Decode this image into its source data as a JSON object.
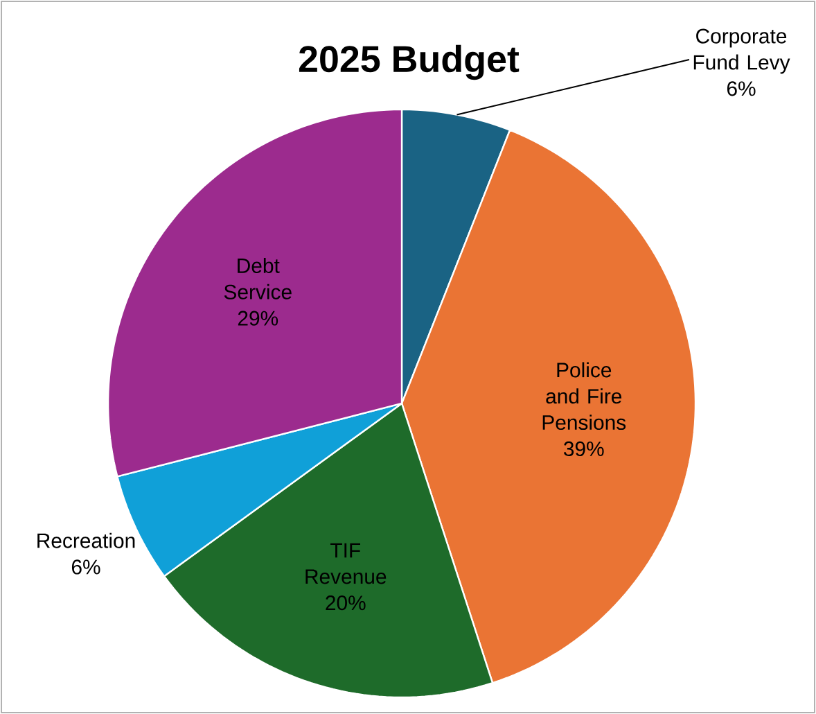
{
  "chart_data": {
    "type": "pie",
    "title": "2025 Budget",
    "categories": [
      "Corporate Fund Levy",
      "Police and Fire Pensions",
      "TIF Revenue",
      "Recreation",
      "Debt Service"
    ],
    "values": [
      6,
      39,
      20,
      6,
      29
    ],
    "value_labels": [
      "6%",
      "39%",
      "20%",
      "6%",
      "29%"
    ],
    "colors": [
      "#1a6384",
      "#ea7434",
      "#1e6b2a",
      "#10a0d8",
      "#9c2b8e"
    ]
  }
}
